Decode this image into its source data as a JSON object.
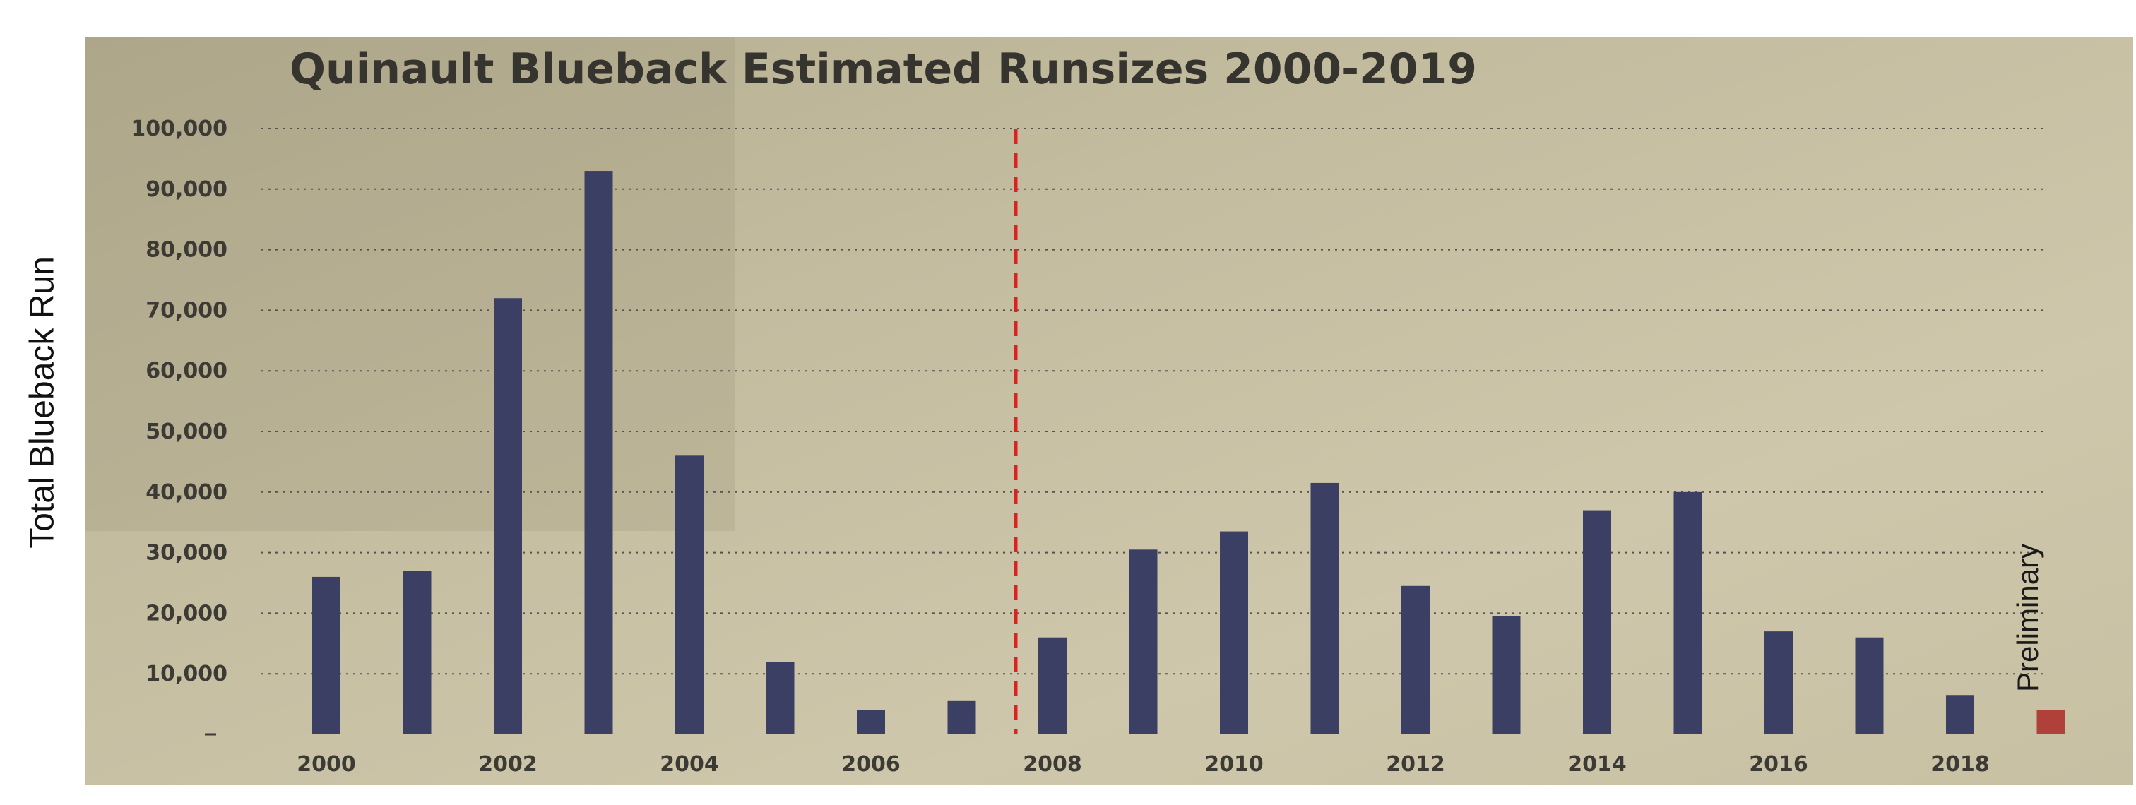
{
  "chart_data": {
    "type": "bar",
    "title": "Quinault Blueback Estimated Runsizes 2000-2019",
    "xlabel": "",
    "ylabel": "Total Blueback Run",
    "categories": [
      "2000",
      "2001",
      "2002",
      "2003",
      "2004",
      "2005",
      "2006",
      "2007",
      "2008",
      "2009",
      "2010",
      "2011",
      "2012",
      "2013",
      "2014",
      "2015",
      "2016",
      "2017",
      "2018",
      "2019"
    ],
    "x_tick_labels": [
      "2000",
      "2002",
      "2004",
      "2006",
      "2008",
      "2010",
      "2012",
      "2014",
      "2016",
      "2018"
    ],
    "series": [
      {
        "values": [
          26000,
          27000,
          72000,
          93000,
          46000,
          12000,
          4000,
          5500,
          16000,
          30500,
          33500,
          41500,
          24500,
          19500,
          37000,
          40000,
          17000,
          16000,
          6500,
          null
        ]
      }
    ],
    "preliminary_values": [
      null,
      null,
      null,
      null,
      null,
      null,
      null,
      null,
      null,
      null,
      null,
      null,
      null,
      null,
      null,
      null,
      null,
      null,
      null,
      4000
    ],
    "ylim": [
      0,
      100000
    ],
    "y_ticks": [
      10000,
      20000,
      30000,
      40000,
      50000,
      60000,
      70000,
      80000,
      90000,
      100000
    ],
    "y_tick_labels": [
      "10,000",
      "20,000",
      "30,000",
      "40,000",
      "50,000",
      "60,000",
      "70,000",
      "80,000",
      "90,000",
      "100,000"
    ],
    "grid": true,
    "reference_line_x": "2008",
    "legend": {
      "placement": "right",
      "entries": [
        "Preliminary"
      ]
    },
    "colors": {
      "bar": "#3a3f63",
      "preliminary": "#b0403a",
      "reference_line": "#e02020",
      "background": "#c9c0a4",
      "grid": "#55524a"
    }
  }
}
